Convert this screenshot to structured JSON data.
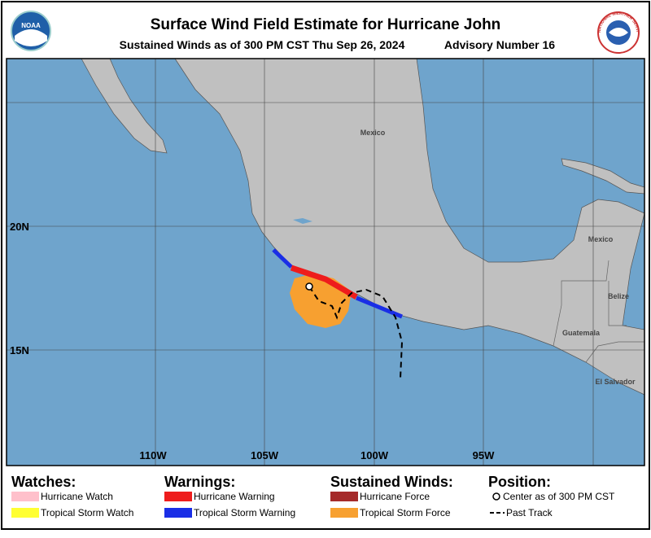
{
  "header": {
    "title": "Surface Wind Field Estimate for Hurricane John",
    "subtitle": "Sustained Winds as of 300 PM CST Thu Sep 26, 2024",
    "advisory": "Advisory Number 16",
    "left_logo": "NOAA",
    "right_logo": "NATIONAL WEATHER SERVICE"
  },
  "map": {
    "lat_labels": [
      "20N",
      "15N"
    ],
    "lon_labels": [
      "110W",
      "105W",
      "100W",
      "95W"
    ],
    "places": [
      "Mexico",
      "Mexico",
      "Belize",
      "Guatemala",
      "El Salvador"
    ]
  },
  "legend": {
    "groups": [
      {
        "title": "Watches:",
        "items": [
          "Hurricane Watch",
          "Tropical Storm Watch"
        ]
      },
      {
        "title": "Warnings:",
        "items": [
          "Hurricane Warning",
          "Tropical Storm Warning"
        ]
      },
      {
        "title": "Sustained Winds:",
        "items": [
          "Hurricane Force",
          "Tropical Storm Force"
        ]
      },
      {
        "title": "Position:",
        "items": [
          "Center as of 300 PM CST",
          "Past Track"
        ]
      }
    ]
  }
}
